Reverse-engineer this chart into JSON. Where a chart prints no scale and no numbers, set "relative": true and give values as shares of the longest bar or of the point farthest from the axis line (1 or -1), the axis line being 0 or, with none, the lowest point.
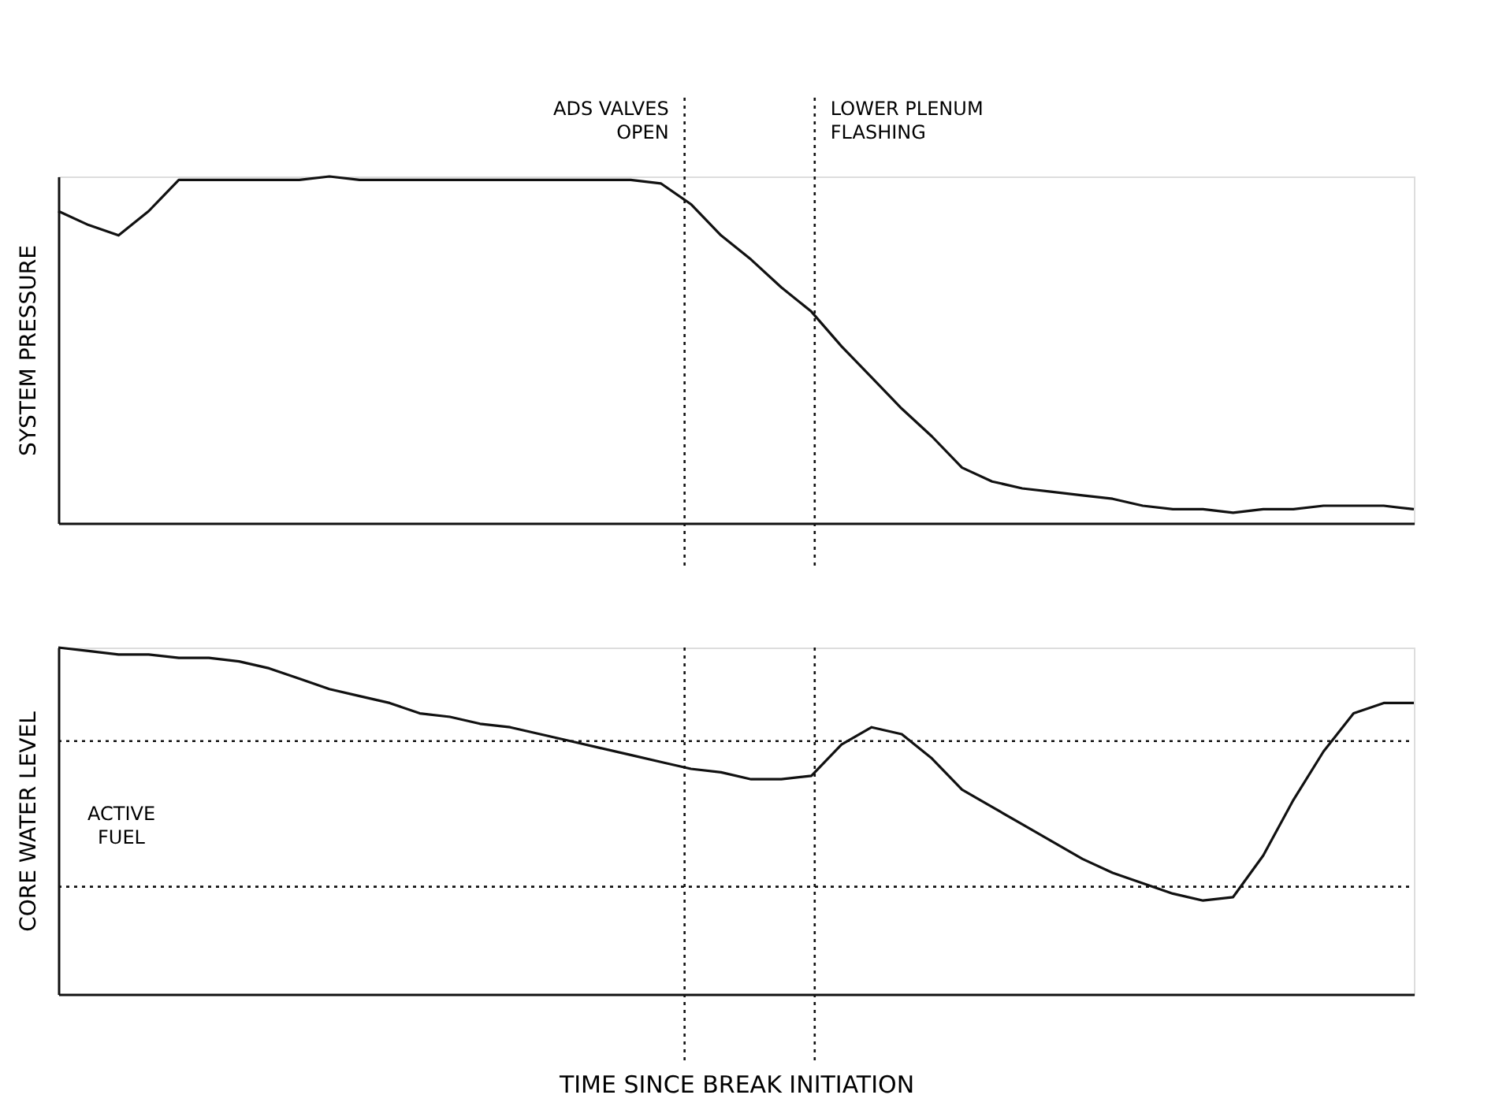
{
  "chart_data": [
    {
      "type": "line",
      "relative": true,
      "ylabel": "SYSTEM PRESSURE",
      "tick_labels": false,
      "grid": false,
      "marker": "none",
      "line_style": "solid",
      "categories": [
        null,
        null,
        null,
        null,
        null,
        null,
        null,
        null,
        null,
        null,
        null,
        null,
        null,
        null,
        null,
        null,
        null,
        null,
        null,
        null,
        null,
        null,
        null,
        null,
        null,
        null,
        null,
        null,
        null,
        null,
        null,
        null,
        null,
        null,
        null,
        null,
        null,
        null,
        null,
        null,
        null,
        null,
        null,
        null,
        null,
        null
      ],
      "series": [
        {
          "color": "#111111",
          "values": [
            0.9,
            0.86,
            0.83,
            0.9,
            0.99,
            0.99,
            0.99,
            0.99,
            0.99,
            1.0,
            0.99,
            0.99,
            0.99,
            0.99,
            0.99,
            0.99,
            0.99,
            0.99,
            0.99,
            0.99,
            0.98,
            0.92,
            0.83,
            0.76,
            0.68,
            0.61,
            0.51,
            0.42,
            0.33,
            0.25,
            0.16,
            0.12,
            0.1,
            0.09,
            0.08,
            0.07,
            0.05,
            0.04,
            0.04,
            0.03,
            0.04,
            0.04,
            0.05,
            0.05,
            0.05,
            0.04
          ]
        }
      ],
      "annotations": [
        "ADS VALVES OPEN",
        "LOWER PLENUM FLASHING"
      ]
    },
    {
      "type": "line",
      "relative": true,
      "ylabel": "CORE WATER LEVEL",
      "xlabel": "TIME SINCE BREAK INITIATION",
      "tick_labels": false,
      "grid": false,
      "marker": "none",
      "line_style": "solid",
      "categories": [
        null,
        null,
        null,
        null,
        null,
        null,
        null,
        null,
        null,
        null,
        null,
        null,
        null,
        null,
        null,
        null,
        null,
        null,
        null,
        null,
        null,
        null,
        null,
        null,
        null,
        null,
        null,
        null,
        null,
        null,
        null,
        null,
        null,
        null,
        null,
        null,
        null,
        null,
        null,
        null,
        null,
        null,
        null,
        null,
        null,
        null
      ],
      "series": [
        {
          "color": "#111111",
          "values": [
            1.0,
            0.99,
            0.98,
            0.98,
            0.97,
            0.97,
            0.96,
            0.94,
            0.91,
            0.88,
            0.86,
            0.84,
            0.81,
            0.8,
            0.78,
            0.77,
            0.75,
            0.73,
            0.71,
            0.69,
            0.67,
            0.65,
            0.64,
            0.62,
            0.62,
            0.63,
            0.72,
            0.77,
            0.75,
            0.68,
            0.59,
            0.54,
            0.49,
            0.44,
            0.39,
            0.35,
            0.32,
            0.29,
            0.27,
            0.28,
            0.4,
            0.56,
            0.7,
            0.81,
            0.84,
            0.84
          ]
        }
      ],
      "ref_lines": [
        {
          "axis": "y",
          "value": 0.73,
          "label": null,
          "line_style": "dotted",
          "color": "#111111"
        },
        {
          "axis": "y",
          "value": 0.31,
          "label": null,
          "line_style": "dotted",
          "color": "#111111"
        }
      ],
      "annotations": [
        "ACTIVE FUEL"
      ]
    }
  ]
}
